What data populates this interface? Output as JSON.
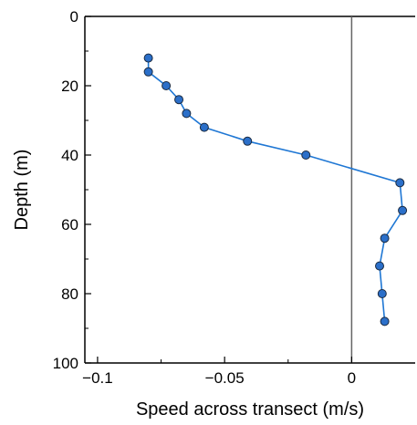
{
  "chart_data": {
    "type": "line",
    "title": "",
    "xlabel": "Speed across transect (m/s)",
    "ylabel": "Depth (m)",
    "xlim": [
      -0.105,
      0.025
    ],
    "ylim": [
      100,
      0
    ],
    "y_inverted": true,
    "xticks": [
      -0.1,
      -0.05,
      0
    ],
    "xtick_labels": [
      "−0.1",
      "−0.05",
      "0"
    ],
    "yticks": [
      0,
      20,
      40,
      60,
      80,
      100
    ],
    "ytick_labels": [
      "0",
      "20",
      "40",
      "60",
      "80",
      "100"
    ],
    "grid": false,
    "legend": "none",
    "zero_line": 0,
    "series": [
      {
        "color": "#1f77d4",
        "marker_color": "#2b6fc9",
        "points": [
          {
            "x": -0.08,
            "y": 12
          },
          {
            "x": -0.08,
            "y": 16
          },
          {
            "x": -0.073,
            "y": 20
          },
          {
            "x": -0.068,
            "y": 24
          },
          {
            "x": -0.065,
            "y": 28
          },
          {
            "x": -0.058,
            "y": 32
          },
          {
            "x": -0.041,
            "y": 36
          },
          {
            "x": -0.018,
            "y": 40
          },
          {
            "x": 0.019,
            "y": 48
          },
          {
            "x": 0.02,
            "y": 56
          },
          {
            "x": 0.013,
            "y": 64
          },
          {
            "x": 0.011,
            "y": 72
          },
          {
            "x": 0.012,
            "y": 80
          },
          {
            "x": 0.013,
            "y": 88
          }
        ]
      }
    ]
  }
}
